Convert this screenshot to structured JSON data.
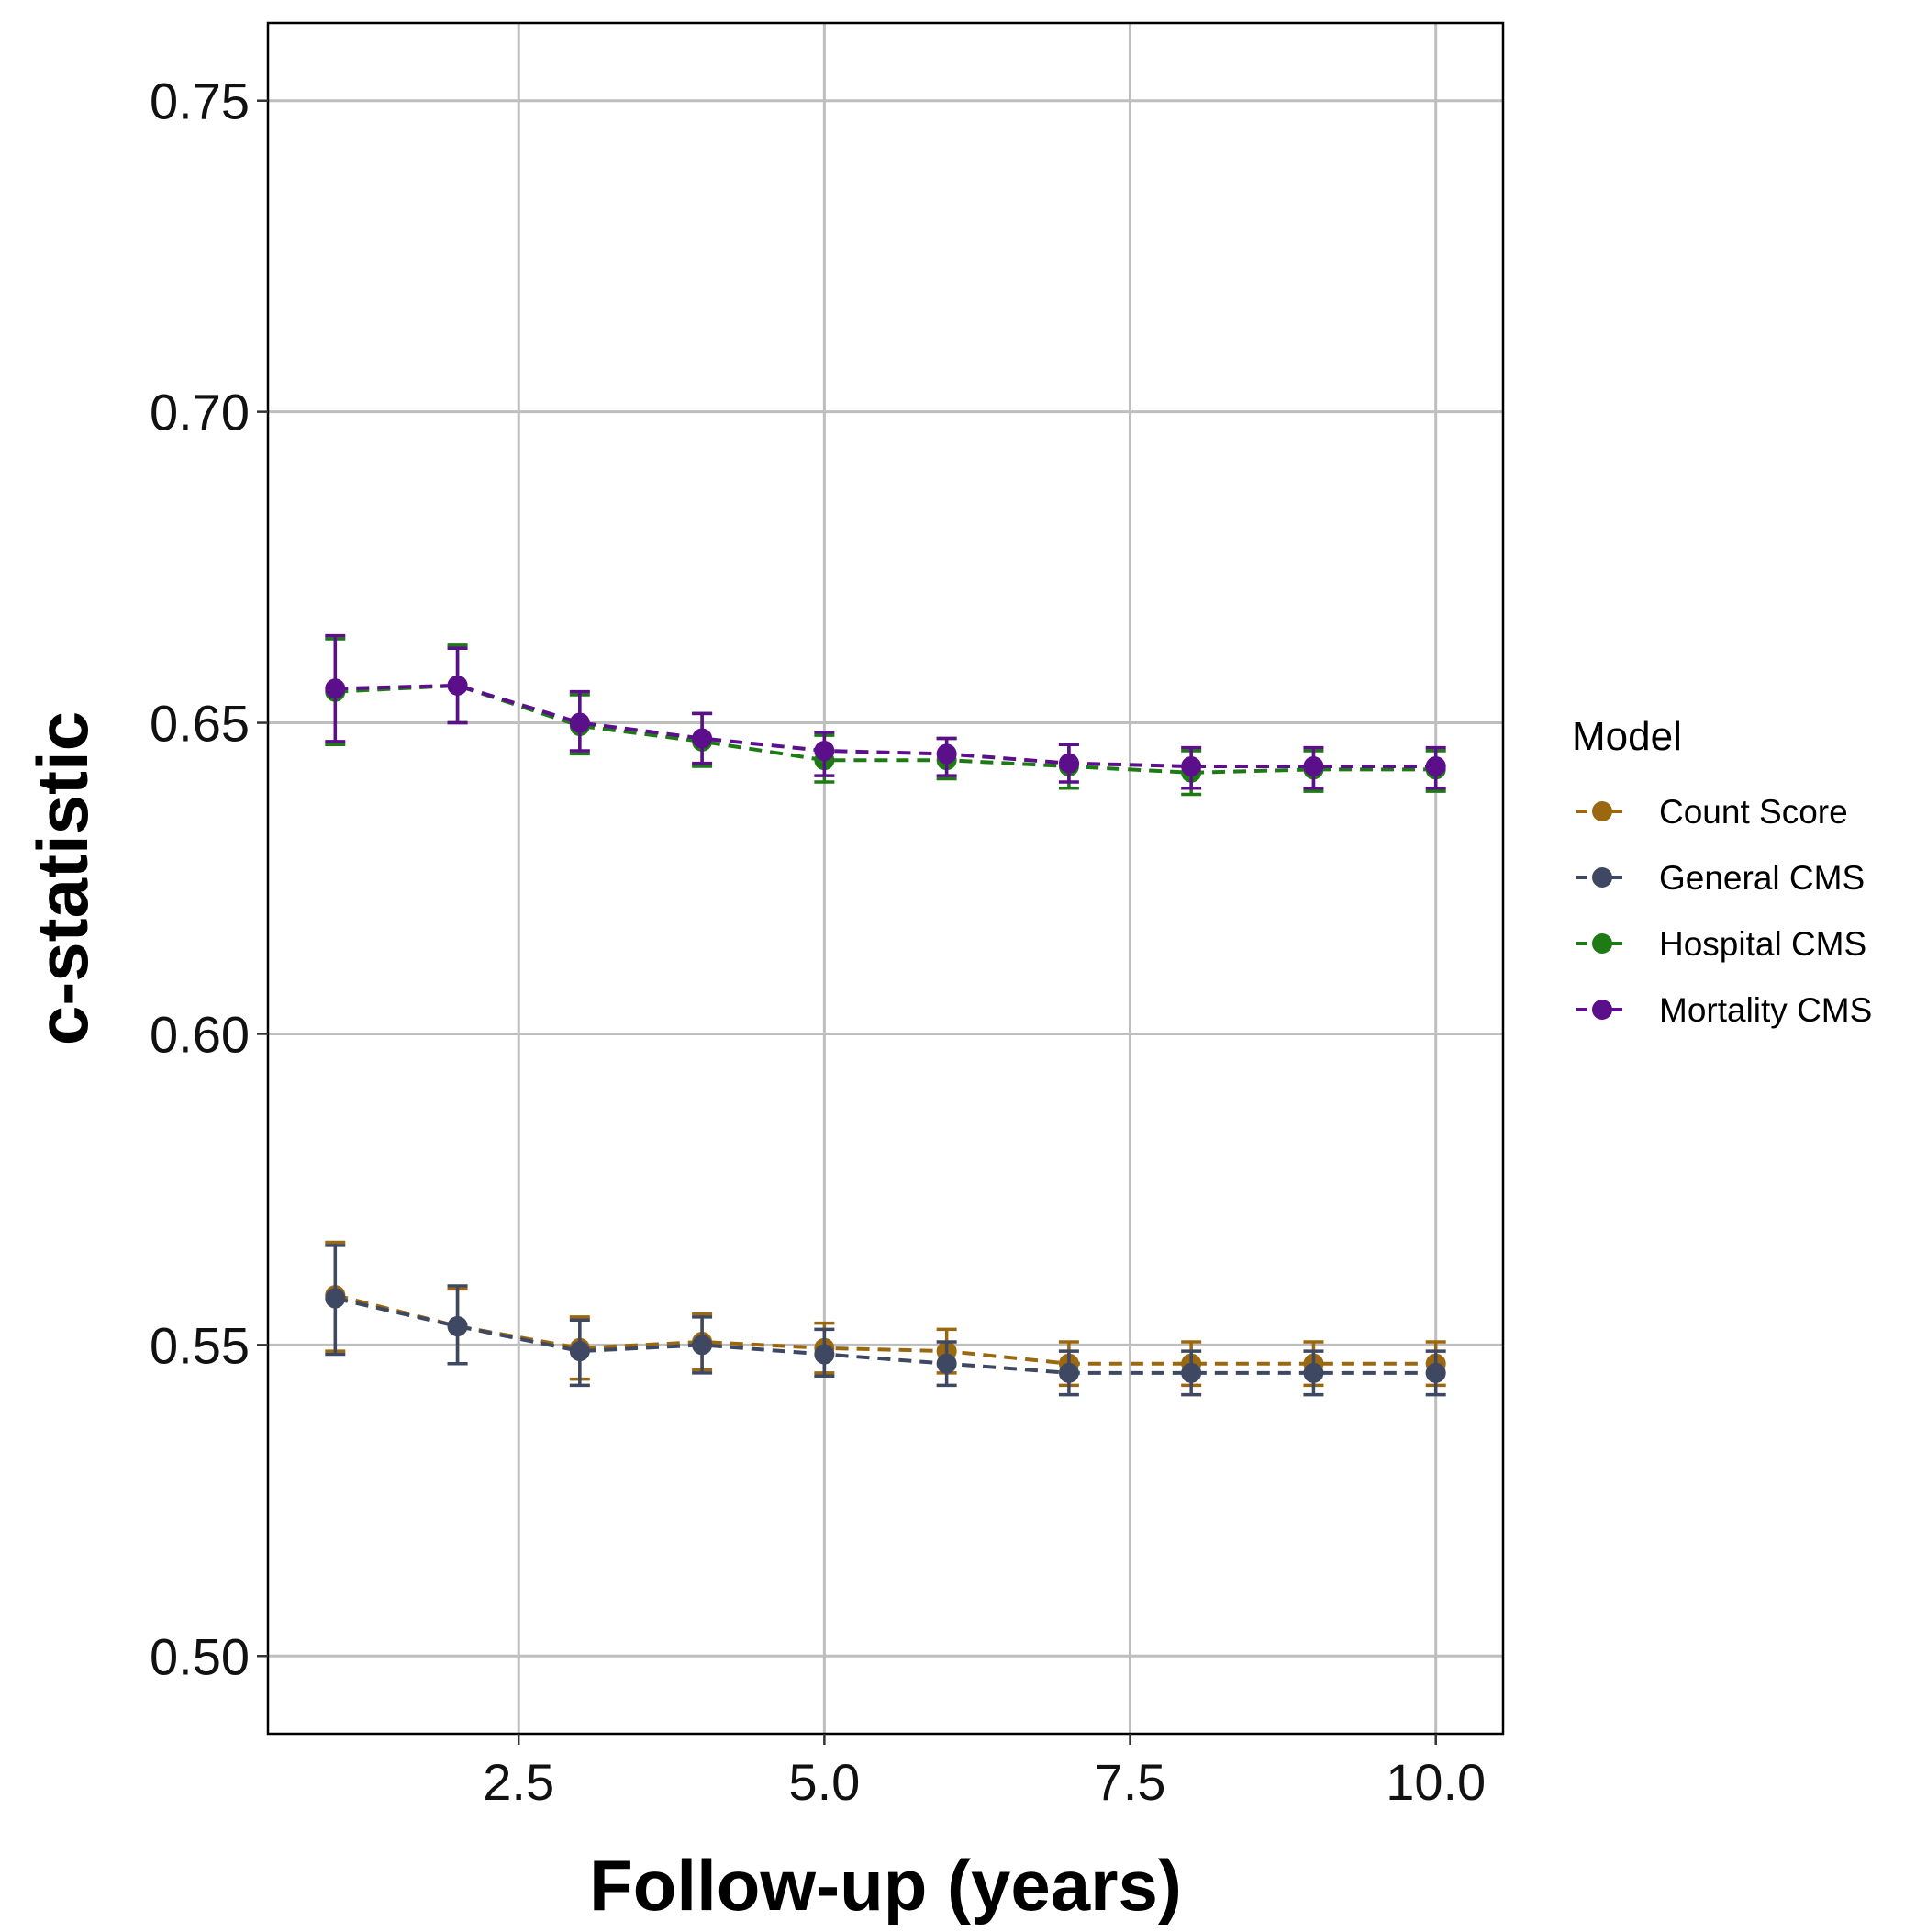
{
  "chart_data": {
    "type": "line",
    "title": "",
    "xlabel": "Follow-up (years)",
    "ylabel": "c-statistic",
    "xlim": [
      0.45,
      10.55
    ],
    "ylim": [
      0.4875,
      0.7625
    ],
    "x_ticks": [
      2.5,
      5.0,
      7.5,
      10.0
    ],
    "x_tick_labels": [
      "2.5",
      "5.0",
      "7.5",
      "10.0"
    ],
    "y_ticks": [
      0.5,
      0.55,
      0.6,
      0.65,
      0.7,
      0.75
    ],
    "y_tick_labels": [
      "0.50",
      "0.55",
      "0.60",
      "0.65",
      "0.70",
      "0.75"
    ],
    "grid": true,
    "line_style": "dashed",
    "error_bars": true,
    "legend": {
      "title": "Model",
      "position": "right"
    },
    "x": [
      1,
      2,
      3,
      4,
      5,
      6,
      7,
      8,
      9,
      10
    ],
    "series": [
      {
        "name": "Count Score",
        "color": "#9A6810",
        "values": [
          0.558,
          0.553,
          0.5495,
          0.5505,
          0.5495,
          0.549,
          0.547,
          0.547,
          0.547,
          0.547
        ],
        "lower": [
          0.549,
          0.547,
          0.5445,
          0.546,
          0.5455,
          0.5455,
          0.5435,
          0.5435,
          0.5435,
          0.5435
        ],
        "upper": [
          0.5665,
          0.559,
          0.5545,
          0.555,
          0.5535,
          0.5525,
          0.5505,
          0.5505,
          0.5505,
          0.5505
        ]
      },
      {
        "name": "General CMS",
        "color": "#3F4862",
        "values": [
          0.5575,
          0.553,
          0.549,
          0.55,
          0.5485,
          0.547,
          0.5455,
          0.5455,
          0.5455,
          0.5455
        ],
        "lower": [
          0.5485,
          0.547,
          0.5435,
          0.5455,
          0.545,
          0.5435,
          0.542,
          0.542,
          0.542,
          0.542
        ],
        "upper": [
          0.566,
          0.5595,
          0.554,
          0.5545,
          0.5525,
          0.5505,
          0.549,
          0.549,
          0.549,
          0.549
        ]
      },
      {
        "name": "Hospital CMS",
        "color": "#1E7A14",
        "values": [
          0.655,
          0.656,
          0.6495,
          0.647,
          0.644,
          0.644,
          0.643,
          0.642,
          0.6425,
          0.6425
        ],
        "lower": [
          0.6465,
          0.65,
          0.645,
          0.643,
          0.6405,
          0.641,
          0.6395,
          0.6385,
          0.639,
          0.639
        ],
        "upper": [
          0.6635,
          0.6625,
          0.6545,
          0.6515,
          0.648,
          0.6475,
          0.6465,
          0.6455,
          0.6455,
          0.6455
        ]
      },
      {
        "name": "Mortality CMS",
        "color": "#5C0F8B",
        "values": [
          0.6555,
          0.656,
          0.65,
          0.6475,
          0.6455,
          0.645,
          0.6435,
          0.643,
          0.643,
          0.643
        ],
        "lower": [
          0.647,
          0.65,
          0.6455,
          0.6435,
          0.6415,
          0.6415,
          0.6405,
          0.6395,
          0.6395,
          0.6395
        ],
        "upper": [
          0.664,
          0.662,
          0.655,
          0.6515,
          0.6485,
          0.6475,
          0.6465,
          0.646,
          0.646,
          0.646
        ]
      }
    ]
  }
}
